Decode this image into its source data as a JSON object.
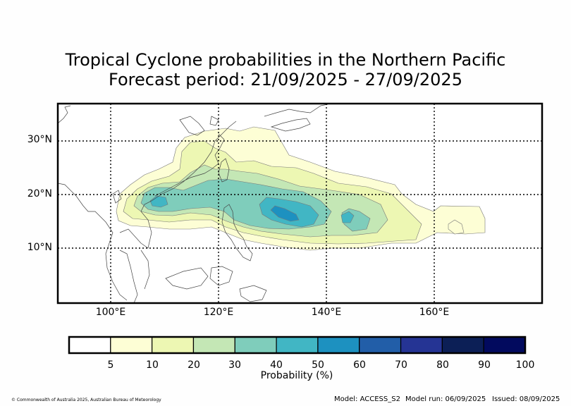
{
  "title_line1": "Tropical Cyclone probabilities in the Northern Pacific",
  "title_line2": "Forecast period: 21/09/2025 - 27/09/2025",
  "lat_labels": [
    "30°N",
    "20°N",
    "10°N"
  ],
  "lon_labels": [
    "100°E",
    "120°E",
    "140°E",
    "160°E"
  ],
  "colorbar": {
    "label": "Probability (%)",
    "ticks": [
      "5",
      "10",
      "20",
      "30",
      "40",
      "50",
      "60",
      "70",
      "80",
      "90",
      "100"
    ],
    "colors": [
      "#ffffff",
      "#fdfed5",
      "#edf7b3",
      "#c4e7b5",
      "#7fcdbb",
      "#41b6c4",
      "#1d91c0",
      "#225ea8",
      "#253494",
      "#0c1f56",
      "#020a5e"
    ]
  },
  "probability_regions": [
    {
      "level": "5%",
      "color": "#fdfed5"
    },
    {
      "level": "10%",
      "color": "#edf7b3"
    },
    {
      "level": "20%",
      "color": "#c4e7b5"
    },
    {
      "level": "30%",
      "color": "#7fcdbb"
    },
    {
      "level": "40%",
      "color": "#41b6c4"
    },
    {
      "level": "50%",
      "color": "#1d91c0"
    }
  ],
  "footer": {
    "copyright": "© Commonwealth of Australia 2025, Australian Bureau of Meteorology",
    "model": "Model: ACCESS_S2",
    "model_run": "Model run: 06/09/2025",
    "issued": "Issued: 08/09/2025"
  }
}
